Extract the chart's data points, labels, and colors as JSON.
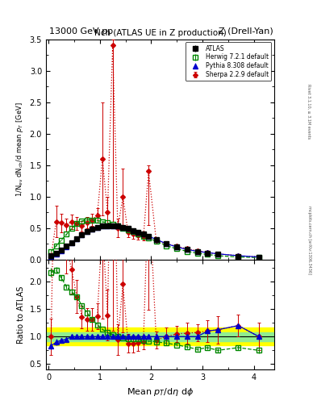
{
  "title_top": "13000 GeV pp",
  "title_right": "Z (Drell-Yan)",
  "plot_title": "Nch (ATLAS UE in Z production)",
  "xlabel": "Mean $p_{T}$/d$\\eta$ d$\\phi$",
  "ylabel_main": "1/N$_{ev}$ dN$_{ch}$/d mean $p_{T}$ [GeV]",
  "ylabel_ratio": "Ratio to ATLAS",
  "side_text_top": "Rivet 3.1.10, ≥ 3.1M events",
  "side_text_bot": "mcplots.cern.ch [arXiv:1306.3436]",
  "atlas_x": [
    0.05,
    0.15,
    0.25,
    0.35,
    0.45,
    0.55,
    0.65,
    0.75,
    0.85,
    0.95,
    1.05,
    1.15,
    1.25,
    1.35,
    1.45,
    1.55,
    1.65,
    1.75,
    1.85,
    1.95,
    2.1,
    2.3,
    2.5,
    2.7,
    2.9,
    3.1,
    3.3,
    3.7,
    4.1
  ],
  "atlas_y": [
    0.06,
    0.1,
    0.15,
    0.21,
    0.27,
    0.33,
    0.39,
    0.44,
    0.48,
    0.51,
    0.53,
    0.54,
    0.54,
    0.53,
    0.51,
    0.49,
    0.46,
    0.43,
    0.4,
    0.37,
    0.32,
    0.25,
    0.2,
    0.16,
    0.13,
    0.1,
    0.08,
    0.05,
    0.04
  ],
  "atlas_yerr": [
    0.005,
    0.007,
    0.008,
    0.009,
    0.01,
    0.01,
    0.01,
    0.01,
    0.01,
    0.01,
    0.01,
    0.01,
    0.01,
    0.01,
    0.01,
    0.01,
    0.01,
    0.01,
    0.009,
    0.009,
    0.008,
    0.007,
    0.006,
    0.005,
    0.005,
    0.004,
    0.004,
    0.003,
    0.003
  ],
  "herwig_x": [
    0.05,
    0.15,
    0.25,
    0.35,
    0.45,
    0.55,
    0.65,
    0.75,
    0.85,
    0.95,
    1.05,
    1.15,
    1.25,
    1.35,
    1.45,
    1.55,
    1.65,
    1.75,
    1.85,
    1.95,
    2.1,
    2.3,
    2.5,
    2.7,
    2.9,
    3.1,
    3.3,
    3.7,
    4.1
  ],
  "herwig_y": [
    0.13,
    0.22,
    0.31,
    0.4,
    0.49,
    0.57,
    0.61,
    0.63,
    0.63,
    0.62,
    0.6,
    0.58,
    0.56,
    0.53,
    0.5,
    0.47,
    0.44,
    0.41,
    0.37,
    0.34,
    0.29,
    0.22,
    0.17,
    0.13,
    0.1,
    0.08,
    0.06,
    0.04,
    0.03
  ],
  "herwig_yerr": [
    0.005,
    0.006,
    0.007,
    0.008,
    0.009,
    0.009,
    0.009,
    0.009,
    0.009,
    0.009,
    0.009,
    0.009,
    0.009,
    0.009,
    0.009,
    0.009,
    0.008,
    0.008,
    0.008,
    0.007,
    0.007,
    0.006,
    0.005,
    0.004,
    0.004,
    0.003,
    0.003,
    0.002,
    0.002
  ],
  "pythia_x": [
    0.05,
    0.15,
    0.25,
    0.35,
    0.45,
    0.55,
    0.65,
    0.75,
    0.85,
    0.95,
    1.05,
    1.15,
    1.25,
    1.35,
    1.45,
    1.55,
    1.65,
    1.75,
    1.85,
    1.95,
    2.1,
    2.3,
    2.5,
    2.7,
    2.9,
    3.1,
    3.3,
    3.7,
    4.1
  ],
  "pythia_y": [
    0.05,
    0.09,
    0.14,
    0.2,
    0.27,
    0.33,
    0.39,
    0.44,
    0.48,
    0.51,
    0.53,
    0.54,
    0.54,
    0.53,
    0.51,
    0.49,
    0.46,
    0.43,
    0.4,
    0.37,
    0.32,
    0.25,
    0.2,
    0.16,
    0.13,
    0.11,
    0.09,
    0.06,
    0.04
  ],
  "pythia_yerr": [
    0.004,
    0.006,
    0.007,
    0.008,
    0.009,
    0.009,
    0.009,
    0.009,
    0.009,
    0.009,
    0.009,
    0.009,
    0.009,
    0.009,
    0.009,
    0.009,
    0.008,
    0.008,
    0.007,
    0.007,
    0.006,
    0.005,
    0.005,
    0.004,
    0.004,
    0.003,
    0.003,
    0.002,
    0.002
  ],
  "sherpa_x": [
    0.05,
    0.15,
    0.25,
    0.35,
    0.45,
    0.55,
    0.65,
    0.75,
    0.85,
    0.95,
    1.05,
    1.15,
    1.25,
    1.35,
    1.45,
    1.55,
    1.65,
    1.75,
    1.85,
    1.95,
    2.1,
    2.3,
    2.5,
    2.7,
    2.9,
    3.1,
    3.3,
    3.7,
    4.1
  ],
  "sherpa_y": [
    0.06,
    0.6,
    0.58,
    0.55,
    0.6,
    0.57,
    0.53,
    0.58,
    0.63,
    0.7,
    1.6,
    0.75,
    3.4,
    0.5,
    1.0,
    0.43,
    0.4,
    0.38,
    0.36,
    1.4,
    0.3,
    0.25,
    0.21,
    0.17,
    0.14,
    0.11,
    0.09,
    0.06,
    0.04
  ],
  "sherpa_yerr_lo": [
    0.02,
    0.25,
    0.15,
    0.1,
    0.12,
    0.1,
    0.08,
    0.09,
    0.1,
    0.12,
    0.9,
    0.25,
    2.8,
    0.15,
    0.45,
    0.08,
    0.07,
    0.06,
    0.05,
    0.85,
    0.05,
    0.04,
    0.03,
    0.03,
    0.02,
    0.02,
    0.02,
    0.01,
    0.01
  ],
  "sherpa_yerr_hi": [
    0.02,
    0.25,
    0.15,
    0.1,
    0.12,
    0.1,
    0.08,
    0.09,
    0.1,
    0.12,
    0.9,
    0.25,
    0.1,
    0.15,
    0.45,
    0.08,
    0.07,
    0.06,
    0.05,
    0.1,
    0.05,
    0.04,
    0.03,
    0.03,
    0.02,
    0.02,
    0.02,
    0.01,
    0.01
  ],
  "atlas_color": "#000000",
  "herwig_color": "#008800",
  "pythia_color": "#0000cc",
  "sherpa_color": "#cc0000",
  "band_yellow": [
    0.84,
    1.16
  ],
  "band_green": [
    0.92,
    1.08
  ],
  "ylim_main": [
    0.0,
    3.5
  ],
  "ylim_ratio": [
    0.4,
    2.4
  ],
  "xlim": [
    -0.05,
    4.4
  ],
  "main_yticks": [
    0.0,
    0.5,
    1.0,
    1.5,
    2.0,
    2.5,
    3.0,
    3.5
  ],
  "ratio_yticks": [
    0.5,
    1.0,
    1.5,
    2.0
  ],
  "xticks": [
    0,
    1,
    2,
    3,
    4
  ]
}
